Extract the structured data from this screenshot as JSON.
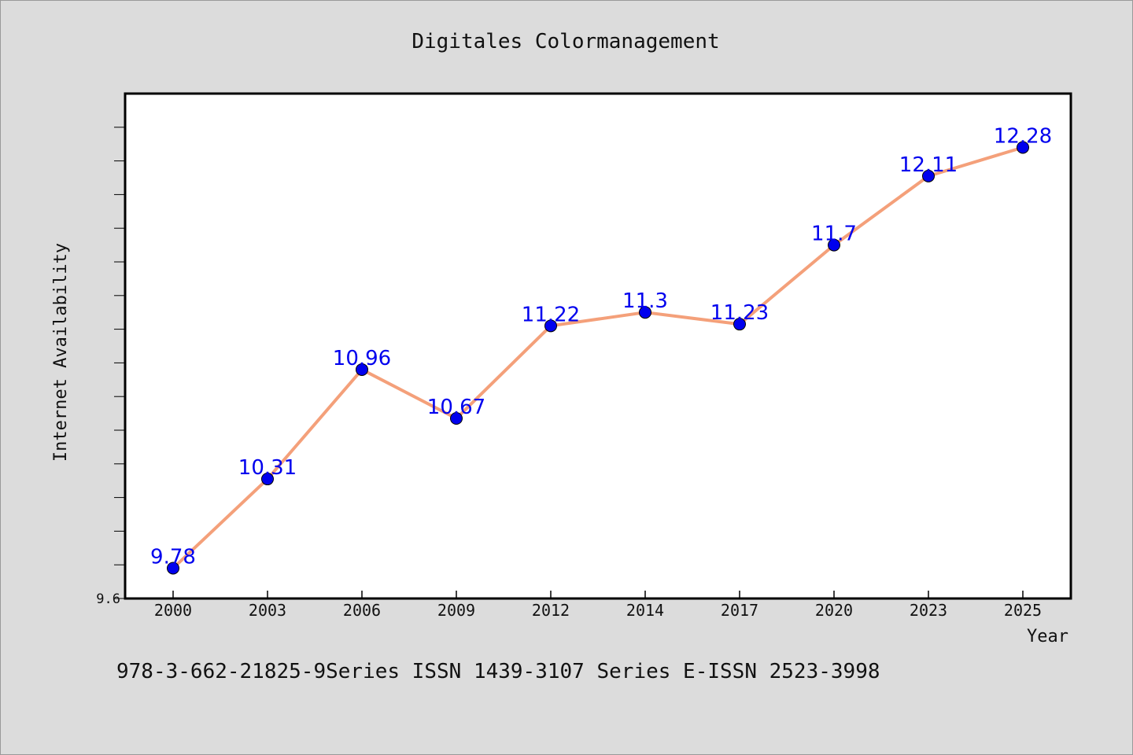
{
  "chart_data": {
    "type": "line",
    "title": "Digitales Colormanagement",
    "xlabel": "Year",
    "ylabel": "Internet Availability",
    "categories": [
      "2000",
      "2003",
      "2006",
      "2009",
      "2012",
      "2014",
      "2017",
      "2020",
      "2023",
      "2025"
    ],
    "series": [
      {
        "values": [
          9.78,
          10.31,
          10.96,
          10.67,
          11.22,
          11.3,
          11.23,
          11.7,
          12.11,
          12.28
        ]
      }
    ],
    "data_labels": [
      "9.78",
      "10.31",
      "10.96",
      "10.67",
      "11.22",
      "11.3",
      "11.23",
      "11.7",
      "12.11",
      "12.28"
    ],
    "ylim": [
      9.6,
      12.6
    ],
    "y_tick_labels": [
      "9.6"
    ],
    "grid": false,
    "line_color": "#f4a07a",
    "marker_color": "#0000ee",
    "label_color": "#0000ee"
  },
  "footer": {
    "text": "978-3-662-21825-9Series ISSN 1439-3107 Series E-ISSN 2523-3998"
  }
}
